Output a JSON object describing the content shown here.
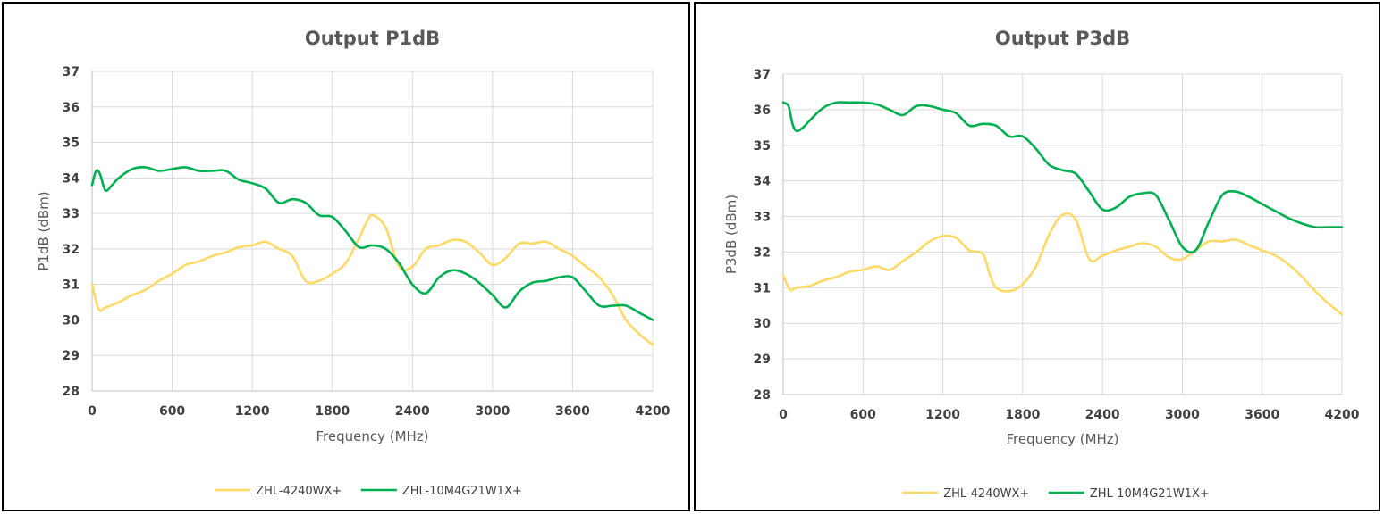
{
  "colors": {
    "series_a": "#FFD966",
    "series_b": "#00B050"
  },
  "chart_data": [
    {
      "type": "line",
      "title": "Output P1dB",
      "xlabel": "Frequency (MHz)",
      "ylabel": "P1dB (dBm)",
      "xlim": [
        0,
        4200
      ],
      "ylim": [
        28,
        37
      ],
      "xticks": [
        0,
        600,
        1200,
        1800,
        2400,
        3000,
        3600,
        4200
      ],
      "yticks": [
        28,
        29,
        30,
        31,
        32,
        33,
        34,
        35,
        36,
        37
      ],
      "grid": true,
      "legend_position": "bottom",
      "series": [
        {
          "name": "ZHL-4240WX+",
          "color": "#FFD966",
          "x": [
            0,
            50,
            100,
            200,
            300,
            400,
            500,
            600,
            700,
            800,
            900,
            1000,
            1100,
            1200,
            1300,
            1400,
            1500,
            1600,
            1700,
            1800,
            1900,
            2000,
            2050,
            2100,
            2200,
            2300,
            2400,
            2500,
            2600,
            2700,
            2800,
            2900,
            3000,
            3100,
            3200,
            3300,
            3400,
            3500,
            3600,
            3700,
            3800,
            3900,
            4000,
            4100,
            4200
          ],
          "values": [
            31.0,
            30.3,
            30.35,
            30.5,
            30.7,
            30.85,
            31.1,
            31.3,
            31.55,
            31.65,
            31.8,
            31.9,
            32.05,
            32.1,
            32.2,
            32.0,
            31.8,
            31.1,
            31.1,
            31.3,
            31.6,
            32.3,
            32.7,
            32.95,
            32.6,
            31.5,
            31.5,
            32.0,
            32.1,
            32.25,
            32.2,
            31.9,
            31.55,
            31.75,
            32.15,
            32.15,
            32.2,
            32.0,
            31.8,
            31.5,
            31.2,
            30.7,
            30.0,
            29.6,
            29.3
          ]
        },
        {
          "name": "ZHL-10M4G21W1X+",
          "color": "#00B050",
          "x": [
            0,
            30,
            60,
            100,
            150,
            200,
            300,
            400,
            500,
            600,
            700,
            800,
            900,
            1000,
            1100,
            1200,
            1300,
            1400,
            1500,
            1600,
            1700,
            1800,
            1900,
            2000,
            2100,
            2200,
            2300,
            2400,
            2500,
            2600,
            2700,
            2800,
            2900,
            3000,
            3100,
            3200,
            3300,
            3400,
            3500,
            3600,
            3700,
            3800,
            3900,
            4000,
            4100,
            4200
          ],
          "values": [
            33.8,
            34.2,
            34.1,
            33.65,
            33.8,
            34.0,
            34.25,
            34.3,
            34.2,
            34.25,
            34.3,
            34.2,
            34.2,
            34.2,
            33.95,
            33.85,
            33.7,
            33.3,
            33.4,
            33.3,
            32.95,
            32.9,
            32.5,
            32.05,
            32.1,
            32.0,
            31.6,
            31.0,
            30.75,
            31.2,
            31.4,
            31.3,
            31.05,
            30.7,
            30.35,
            30.8,
            31.05,
            31.1,
            31.2,
            31.2,
            30.8,
            30.4,
            30.4,
            30.4,
            30.2,
            30.0
          ]
        }
      ]
    },
    {
      "type": "line",
      "title": "Output P3dB",
      "xlabel": "Frequency (MHz)",
      "ylabel": "P3dB (dBm)",
      "xlim": [
        0,
        4200
      ],
      "ylim": [
        28,
        37
      ],
      "xticks": [
        0,
        600,
        1200,
        1800,
        2400,
        3000,
        3600,
        4200
      ],
      "yticks": [
        28,
        29,
        30,
        31,
        32,
        33,
        34,
        35,
        36,
        37
      ],
      "grid": true,
      "legend_position": "bottom",
      "series": [
        {
          "name": "ZHL-4240WX+",
          "color": "#FFD966",
          "x": [
            0,
            50,
            100,
            200,
            300,
            400,
            500,
            600,
            700,
            800,
            900,
            1000,
            1100,
            1200,
            1300,
            1400,
            1500,
            1550,
            1600,
            1700,
            1800,
            1900,
            2000,
            2100,
            2200,
            2300,
            2400,
            2500,
            2600,
            2700,
            2800,
            2900,
            3000,
            3100,
            3200,
            3300,
            3400,
            3500,
            3600,
            3700,
            3800,
            3900,
            4000,
            4100,
            4200
          ],
          "values": [
            31.35,
            30.95,
            31.0,
            31.05,
            31.2,
            31.3,
            31.45,
            31.5,
            31.6,
            31.5,
            31.75,
            32.0,
            32.3,
            32.45,
            32.4,
            32.05,
            31.95,
            31.4,
            31.0,
            30.9,
            31.1,
            31.6,
            32.5,
            33.05,
            32.9,
            31.8,
            31.9,
            32.05,
            32.15,
            32.25,
            32.15,
            31.85,
            31.8,
            32.05,
            32.3,
            32.3,
            32.35,
            32.2,
            32.05,
            31.9,
            31.65,
            31.3,
            30.9,
            30.55,
            30.25
          ]
        },
        {
          "name": "ZHL-10M4G21W1X+",
          "color": "#00B050",
          "x": [
            0,
            40,
            70,
            100,
            150,
            200,
            300,
            400,
            500,
            600,
            700,
            800,
            900,
            1000,
            1100,
            1200,
            1300,
            1400,
            1500,
            1600,
            1700,
            1800,
            1900,
            2000,
            2100,
            2200,
            2300,
            2400,
            2500,
            2600,
            2700,
            2800,
            2900,
            3000,
            3100,
            3200,
            3300,
            3400,
            3500,
            3600,
            3700,
            3800,
            3900,
            4000,
            4100,
            4200
          ],
          "values": [
            36.2,
            36.1,
            35.6,
            35.4,
            35.5,
            35.7,
            36.05,
            36.2,
            36.2,
            36.2,
            36.15,
            36.0,
            35.85,
            36.1,
            36.1,
            36.0,
            35.9,
            35.55,
            35.6,
            35.55,
            35.25,
            35.25,
            34.9,
            34.45,
            34.3,
            34.2,
            33.7,
            33.2,
            33.25,
            33.55,
            33.65,
            33.6,
            32.9,
            32.15,
            32.05,
            32.85,
            33.6,
            33.7,
            33.55,
            33.35,
            33.15,
            32.95,
            32.8,
            32.7,
            32.7,
            32.7
          ]
        }
      ]
    }
  ]
}
